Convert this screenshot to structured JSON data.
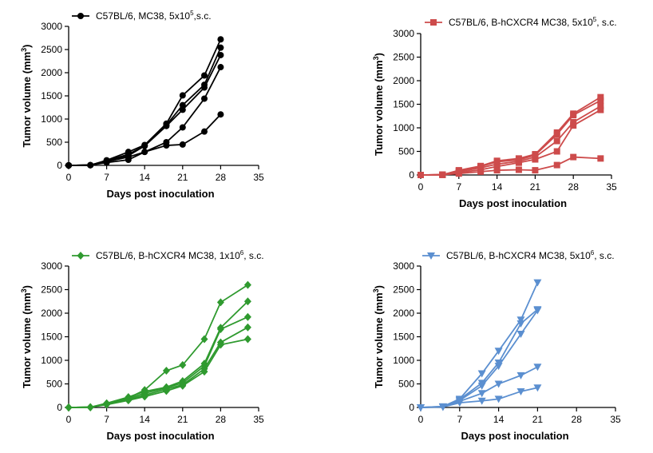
{
  "chart_data": [
    {
      "type": "line",
      "color": "#000000",
      "marker": "circle",
      "legend": {
        "text": "C57BL/6, MC38, 5x10",
        "sup": "5",
        "suffix": ",s.c."
      },
      "xlabel": "Days post inoculation",
      "ylabel": "Tumor volume (mm",
      "ylabel_sup": "3",
      "ylabel_end": ")",
      "xlim": [
        0,
        35
      ],
      "ylim": [
        0,
        3000
      ],
      "xticks": [
        0,
        7,
        14,
        21,
        28,
        35
      ],
      "yticks": [
        0,
        500,
        1000,
        1500,
        2000,
        2500,
        3000
      ],
      "x": [
        0,
        4,
        7,
        11,
        14,
        18,
        21,
        25,
        28
      ],
      "series": [
        {
          "values": [
            0,
            5,
            60,
            120,
            290,
            430,
            450,
            730,
            1100
          ]
        },
        {
          "values": [
            0,
            5,
            80,
            180,
            290,
            500,
            820,
            1440,
            2120
          ]
        },
        {
          "values": [
            0,
            5,
            100,
            210,
            420,
            850,
            1200,
            1680,
            2380
          ]
        },
        {
          "values": [
            0,
            5,
            100,
            240,
            420,
            870,
            1300,
            1740,
            2540
          ]
        },
        {
          "values": [
            0,
            5,
            110,
            290,
            440,
            900,
            1510,
            1940,
            2720
          ]
        }
      ]
    },
    {
      "type": "line",
      "color": "#cd4b4b",
      "marker": "square",
      "legend": {
        "text": "C57BL/6, B-hCXCR4 MC38, 5x10",
        "sup": "5",
        "suffix": ", s.c."
      },
      "xlabel": "Days post inoculation",
      "ylabel": "Tumor volume (mm",
      "ylabel_sup": "3",
      "ylabel_end": ")",
      "xlim": [
        0,
        35
      ],
      "ylim": [
        0,
        3000
      ],
      "xticks": [
        0,
        7,
        14,
        21,
        28,
        35
      ],
      "yticks": [
        0,
        500,
        1000,
        1500,
        2000,
        2500,
        3000
      ],
      "x": [
        0,
        4,
        7,
        11,
        14,
        18,
        21,
        25,
        28,
        33
      ],
      "series": [
        {
          "values": [
            0,
            5,
            30,
            70,
            100,
            110,
            100,
            210,
            380,
            350
          ]
        },
        {
          "values": [
            0,
            5,
            50,
            110,
            180,
            260,
            330,
            500,
            1050,
            1380
          ]
        },
        {
          "values": [
            0,
            5,
            70,
            150,
            230,
            290,
            380,
            720,
            1120,
            1460
          ]
        },
        {
          "values": [
            0,
            5,
            90,
            180,
            280,
            320,
            420,
            860,
            1270,
            1580
          ]
        },
        {
          "values": [
            0,
            5,
            100,
            190,
            300,
            350,
            440,
            900,
            1300,
            1650
          ]
        }
      ]
    },
    {
      "type": "line",
      "color": "#2f9a2f",
      "marker": "diamond",
      "legend": {
        "text": "C57BL/6, B-hCXCR4 MC38, 1x10",
        "sup": "6",
        "suffix": ", s.c."
      },
      "xlabel": "Days post inoculation",
      "ylabel": "Tumor volume (mm",
      "ylabel_sup": "3",
      "ylabel_end": ")",
      "xlim": [
        0,
        35
      ],
      "ylim": [
        0,
        3000
      ],
      "xticks": [
        0,
        7,
        14,
        21,
        28,
        35
      ],
      "yticks": [
        0,
        500,
        1000,
        1500,
        2000,
        2500,
        3000
      ],
      "x": [
        0,
        4,
        7,
        11,
        14,
        18,
        21,
        25,
        28,
        33
      ],
      "series": [
        {
          "values": [
            0,
            5,
            80,
            200,
            370,
            780,
            900,
            1450,
            2230,
            2600
          ]
        },
        {
          "values": [
            0,
            5,
            90,
            220,
            340,
            430,
            560,
            930,
            1690,
            2250
          ]
        },
        {
          "values": [
            0,
            5,
            80,
            190,
            300,
            420,
            520,
            880,
            1660,
            1920
          ]
        },
        {
          "values": [
            0,
            5,
            70,
            170,
            260,
            390,
            480,
            820,
            1380,
            1700
          ]
        },
        {
          "values": [
            0,
            5,
            60,
            150,
            230,
            350,
            460,
            760,
            1330,
            1450
          ]
        }
      ]
    },
    {
      "type": "line",
      "color": "#5b8fd0",
      "marker": "triangle-down",
      "legend": {
        "text": "C57BL/6, B-hCXCR4 MC38, 5x10",
        "sup": "6",
        "suffix": ", s.c."
      },
      "xlabel": "Days post inoculation",
      "ylabel": "Tumor volume (mm",
      "ylabel_sup": "3",
      "ylabel_end": ")",
      "xlim": [
        0,
        35
      ],
      "ylim": [
        0,
        3000
      ],
      "xticks": [
        0,
        7,
        14,
        21,
        28,
        35
      ],
      "yticks": [
        0,
        500,
        1000,
        1500,
        2000,
        2500,
        3000
      ],
      "x": [
        0,
        4,
        7,
        11,
        14,
        18,
        21
      ],
      "series": [
        {
          "values": [
            0,
            10,
            100,
            140,
            180,
            340,
            420
          ]
        },
        {
          "values": [
            0,
            10,
            130,
            300,
            500,
            680,
            860
          ]
        },
        {
          "values": [
            0,
            15,
            150,
            460,
            880,
            1560,
            2060
          ]
        },
        {
          "values": [
            0,
            20,
            170,
            520,
            950,
            1780,
            2080
          ]
        },
        {
          "values": [
            0,
            20,
            180,
            720,
            1200,
            1860,
            2650
          ]
        }
      ]
    }
  ]
}
